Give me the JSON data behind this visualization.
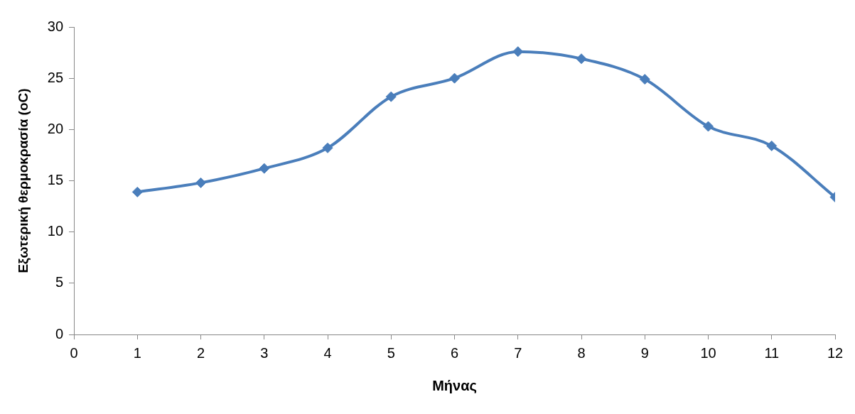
{
  "chart_data": {
    "type": "line",
    "xlabel": "Μήνας",
    "ylabel": "Εξωτερική θερμοκρασία (oC)",
    "x": [
      1,
      2,
      3,
      4,
      5,
      6,
      7,
      8,
      9,
      10,
      11,
      12
    ],
    "series": [
      {
        "color": "#4a7ebb",
        "values": [
          13.9,
          14.8,
          16.2,
          18.2,
          23.2,
          25.0,
          27.6,
          26.9,
          24.9,
          20.3,
          18.4,
          13.4
        ]
      }
    ],
    "xlim": [
      0,
      12
    ],
    "xticks": [
      0,
      1,
      2,
      3,
      4,
      5,
      6,
      7,
      8,
      9,
      10,
      11,
      12
    ],
    "ylim": [
      0,
      30
    ],
    "yticks": [
      0,
      5,
      10,
      15,
      20,
      25,
      30
    ],
    "grid": false,
    "legend": false,
    "marker": "diamond",
    "line_style": "solid"
  }
}
